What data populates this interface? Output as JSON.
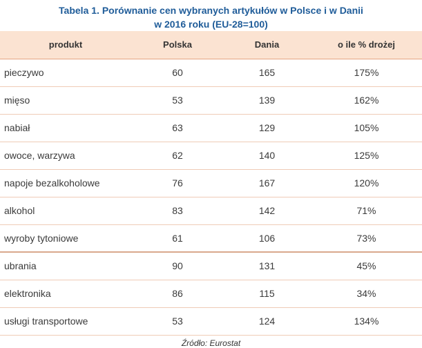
{
  "chart_data": {
    "type": "table",
    "title_line1": "Tabela 1. Porównanie cen wybranych artykułów w Polsce i w Danii",
    "title_line2": "w 2016 roku (EU-28=100)",
    "columns": [
      "produkt",
      "Polska",
      "Dania",
      "o ile % drożej"
    ],
    "rows": [
      [
        "pieczywo",
        "60",
        "165",
        "175%"
      ],
      [
        "mięso",
        "53",
        "139",
        "162%"
      ],
      [
        "nabiał",
        "63",
        "129",
        "105%"
      ],
      [
        "owoce, warzywa",
        "62",
        "140",
        "125%"
      ],
      [
        "napoje bezalkoholowe",
        "76",
        "167",
        "120%"
      ],
      [
        "alkohol",
        "83",
        "142",
        "71%"
      ],
      [
        "wyroby tytoniowe",
        "61",
        "106",
        "73%"
      ],
      [
        "ubrania",
        "90",
        "131",
        "45%"
      ],
      [
        "elektronika",
        "86",
        "115",
        "34%"
      ],
      [
        "usługi transportowe",
        "53",
        "124",
        "134%"
      ]
    ],
    "source": "Źródło: Eurostat"
  },
  "colors": {
    "title": "#1f5c99",
    "header_bg": "#fbe3d2",
    "row_border": "#efcbb6"
  }
}
